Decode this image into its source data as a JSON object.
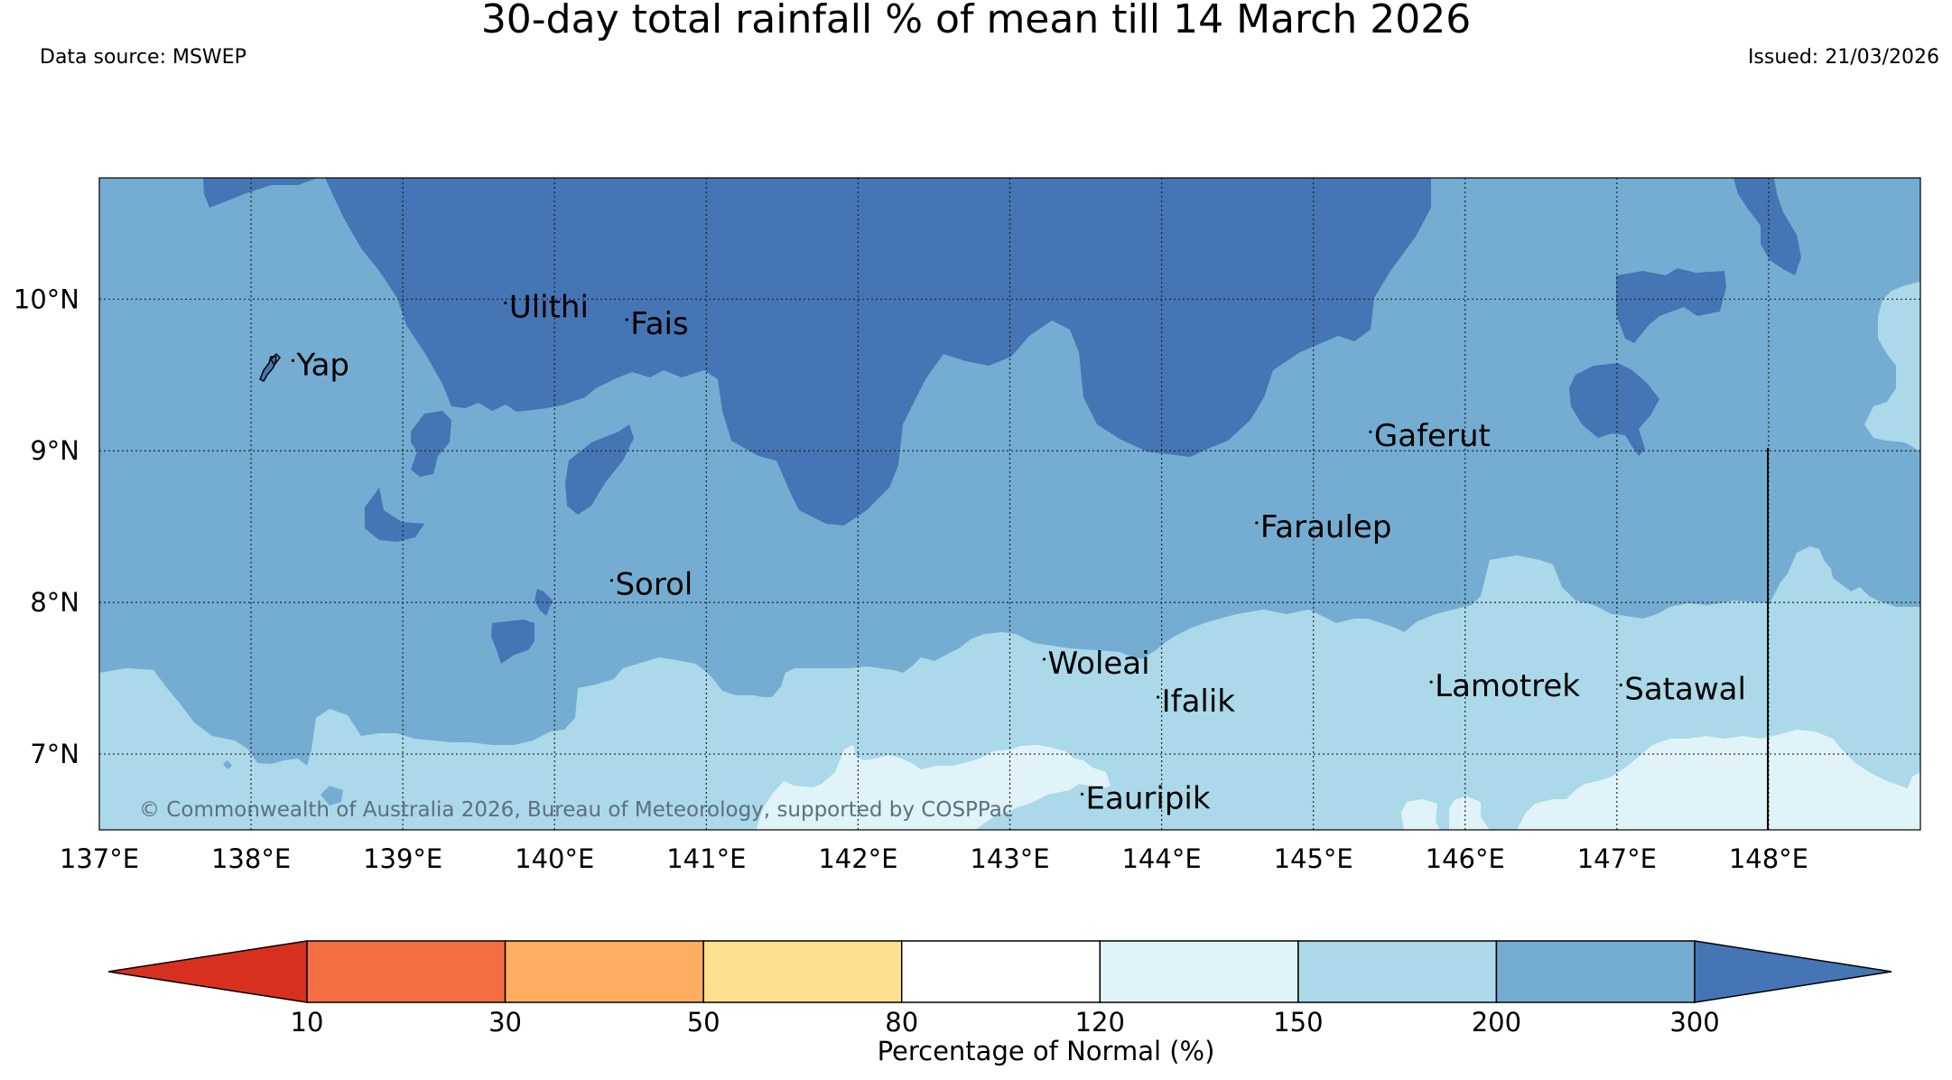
{
  "title": "30-day total rainfall % of mean till 14 March 2026",
  "data_source": "Data source: MSWEP",
  "issued": "Issued: 21/03/2026",
  "copyright": "© Commonwealth of Australia 2026, Bureau of Meteorology, supported by COSPPac",
  "map": {
    "lon_ticks": [
      "137°E",
      "138°E",
      "139°E",
      "140°E",
      "141°E",
      "142°E",
      "143°E",
      "144°E",
      "145°E",
      "146°E",
      "147°E",
      "148°E"
    ],
    "lat_ticks": [
      "10°N",
      "9°N",
      "8°N",
      "7°N"
    ],
    "places": [
      {
        "name": "Yap",
        "lon": 138.3,
        "lat": 9.5
      },
      {
        "name": "Ulithi",
        "lon": 139.7,
        "lat": 9.88
      },
      {
        "name": "Fais",
        "lon": 140.5,
        "lat": 9.77
      },
      {
        "name": "Sorol",
        "lon": 140.4,
        "lat": 8.05
      },
      {
        "name": "Gaferut",
        "lon": 145.4,
        "lat": 9.03
      },
      {
        "name": "Faraulep",
        "lon": 144.65,
        "lat": 8.43
      },
      {
        "name": "Woleai",
        "lon": 143.25,
        "lat": 7.53
      },
      {
        "name": "Ifalik",
        "lon": 144.0,
        "lat": 7.28
      },
      {
        "name": "Lamotrek",
        "lon": 145.8,
        "lat": 7.38
      },
      {
        "name": "Satawal",
        "lon": 147.05,
        "lat": 7.36
      },
      {
        "name": "Eauripik",
        "lon": 143.5,
        "lat": 6.64
      }
    ]
  },
  "colorbar": {
    "label": "Percentage of Normal (%)",
    "ticks": [
      "10",
      "30",
      "50",
      "80",
      "120",
      "150",
      "200",
      "300"
    ],
    "bins": [
      {
        "range": "<10",
        "color": "#d7301f"
      },
      {
        "range": "10-30",
        "color": "#f46d43"
      },
      {
        "range": "30-50",
        "color": "#fdae61"
      },
      {
        "range": "50-80",
        "color": "#fee090"
      },
      {
        "range": "80-120",
        "color": "#ffffff"
      },
      {
        "range": "120-150",
        "color": "#e0f3f8"
      },
      {
        "range": "150-200",
        "color": "#abd9e9"
      },
      {
        "range": "200-300",
        "color": "#74add1"
      },
      {
        "range": ">300",
        "color": "#4575b4"
      }
    ]
  }
}
